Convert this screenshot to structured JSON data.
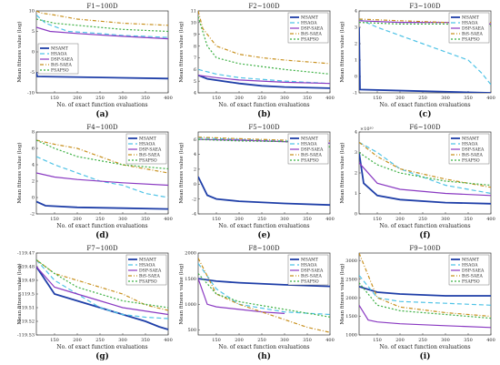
{
  "figure": {
    "xlabel": "No. of exact function evaluations",
    "ylabel": "Mean fitness value (log)",
    "legend": [
      "MSAMT",
      "HSAOA",
      "DSP-SAEA",
      "BiS-SAEA",
      "FSAPSO"
    ],
    "colors": {
      "MSAMT": "#1f3fa8",
      "HSAOA": "#4fc3e6",
      "DSP-SAEA": "#8a3ac2",
      "BiS-SAEA": "#c8901e",
      "FSAPSO": "#3cb043"
    }
  },
  "chart_data": [
    {
      "type": "line",
      "title": "F1~100D",
      "panel_label": "(a)",
      "xlabel": "No. of exact function evaluations",
      "ylabel": "Mean fitness value (log)",
      "xlim": [
        110,
        400
      ],
      "ylim": [
        -10,
        10
      ],
      "xticks": [
        150,
        200,
        250,
        300,
        350,
        400
      ],
      "yticks": [
        -10,
        -5,
        0,
        5,
        10
      ],
      "legend_position": "left",
      "series": [
        {
          "name": "MSAMT",
          "x": [
            110,
            112,
            400
          ],
          "y": [
            -5,
            -6,
            -6.5
          ]
        },
        {
          "name": "HSAOA",
          "x": [
            110,
            130,
            180,
            250,
            300,
            350,
            400
          ],
          "y": [
            9,
            7,
            5,
            4.5,
            4,
            3.8,
            3.5
          ]
        },
        {
          "name": "DSP-SAEA",
          "x": [
            110,
            140,
            200,
            300,
            400
          ],
          "y": [
            6,
            5,
            4.5,
            3.8,
            3.2
          ]
        },
        {
          "name": "BiS-SAEA",
          "x": [
            110,
            120,
            150,
            200,
            300,
            400
          ],
          "y": [
            10,
            9.5,
            9,
            8,
            7,
            6.5
          ]
        },
        {
          "name": "FSAPSO",
          "x": [
            110,
            150,
            200,
            300,
            400
          ],
          "y": [
            8,
            7,
            6.5,
            5.5,
            5
          ]
        }
      ]
    },
    {
      "type": "line",
      "title": "F2~100D",
      "panel_label": "(b)",
      "xlabel": "No. of exact function evaluations",
      "ylabel": "Mean fitness value (log)",
      "xlim": [
        110,
        400
      ],
      "ylim": [
        4,
        11
      ],
      "xticks": [
        150,
        200,
        250,
        300,
        350,
        400
      ],
      "yticks": [
        4,
        5,
        6,
        7,
        8,
        9,
        10,
        11
      ],
      "legend_position": "top-right",
      "series": [
        {
          "name": "MSAMT",
          "x": [
            110,
            130,
            200,
            250,
            300,
            400
          ],
          "y": [
            5.5,
            5.2,
            4.8,
            4.6,
            4.5,
            4.4
          ]
        },
        {
          "name": "HSAOA",
          "x": [
            110,
            150,
            200,
            300,
            400
          ],
          "y": [
            6,
            5.6,
            5.3,
            5,
            4.8
          ]
        },
        {
          "name": "DSP-SAEA",
          "x": [
            110,
            150,
            200,
            300,
            400
          ],
          "y": [
            5.5,
            5.3,
            5.1,
            4.9,
            4.8
          ]
        },
        {
          "name": "BiS-SAEA",
          "x": [
            110,
            120,
            150,
            200,
            250,
            300,
            400
          ],
          "y": [
            11,
            9.5,
            8,
            7.3,
            7,
            6.8,
            6.5
          ]
        },
        {
          "name": "FSAPSO",
          "x": [
            110,
            130,
            150,
            200,
            300,
            400
          ],
          "y": [
            10.5,
            8,
            7,
            6.5,
            6,
            5.6
          ]
        }
      ]
    },
    {
      "type": "line",
      "title": "F3~100D",
      "panel_label": "(c)",
      "xlabel": "No. of exact function evaluations",
      "ylabel": "Mean fitness value (log)",
      "xlim": [
        110,
        400
      ],
      "ylim": [
        -1,
        4
      ],
      "xticks": [
        150,
        200,
        250,
        300,
        350,
        400
      ],
      "yticks": [
        -1,
        0,
        1,
        2,
        3,
        4
      ],
      "legend_position": "top-right",
      "series": [
        {
          "name": "MSAMT",
          "x": [
            110,
            112,
            250,
            400
          ],
          "y": [
            3,
            -0.8,
            -0.9,
            -1
          ]
        },
        {
          "name": "HSAOA",
          "x": [
            110,
            150,
            200,
            250,
            300,
            350,
            380,
            400
          ],
          "y": [
            3.5,
            3,
            2.5,
            2,
            1.5,
            1,
            0.2,
            -0.5
          ]
        },
        {
          "name": "DSP-SAEA",
          "x": [
            110,
            200,
            300,
            400
          ],
          "y": [
            3.4,
            3.3,
            3.3,
            3.2
          ]
        },
        {
          "name": "BiS-SAEA",
          "x": [
            110,
            200,
            300,
            400
          ],
          "y": [
            3.5,
            3.4,
            3.3,
            3.3
          ]
        },
        {
          "name": "FSAPSO",
          "x": [
            110,
            200,
            300,
            400
          ],
          "y": [
            3.3,
            3.2,
            3.2,
            3.1
          ]
        }
      ]
    },
    {
      "type": "line",
      "title": "F4~100D",
      "panel_label": "(d)",
      "xlabel": "No. of exact function evaluations",
      "ylabel": "Mean fitness value (log)",
      "xlim": [
        110,
        400
      ],
      "ylim": [
        -2,
        8
      ],
      "xticks": [
        150,
        200,
        250,
        300,
        350,
        400
      ],
      "yticks": [
        -2,
        0,
        2,
        4,
        6,
        8
      ],
      "legend_position": "top-right",
      "series": [
        {
          "name": "MSAMT",
          "x": [
            110,
            130,
            200,
            300,
            400
          ],
          "y": [
            -0.5,
            -1,
            -1.2,
            -1.3,
            -1.4
          ]
        },
        {
          "name": "HSAOA",
          "x": [
            110,
            150,
            200,
            250,
            300,
            350,
            400
          ],
          "y": [
            5,
            4,
            3,
            2,
            1.5,
            0.5,
            0
          ]
        },
        {
          "name": "DSP-SAEA",
          "x": [
            110,
            150,
            200,
            300,
            400
          ],
          "y": [
            3,
            2.5,
            2.2,
            1.8,
            1.5
          ]
        },
        {
          "name": "BiS-SAEA",
          "x": [
            110,
            150,
            200,
            250,
            300,
            400
          ],
          "y": [
            7,
            6.5,
            6,
            5,
            4,
            3
          ]
        },
        {
          "name": "FSAPSO",
          "x": [
            110,
            150,
            200,
            300,
            400
          ],
          "y": [
            7,
            6,
            5,
            4,
            3.5
          ]
        }
      ]
    },
    {
      "type": "line",
      "title": "F5~100D",
      "panel_label": "(e)",
      "xlabel": "No. of exact function evaluations",
      "ylabel": "Mean fitness value (log)",
      "xlim": [
        110,
        400
      ],
      "ylim": [
        -4,
        7
      ],
      "xticks": [
        150,
        200,
        250,
        300,
        350,
        400
      ],
      "yticks": [
        -4,
        -2,
        0,
        2,
        4,
        6
      ],
      "legend_position": "top-right",
      "series": [
        {
          "name": "MSAMT",
          "x": [
            110,
            130,
            150,
            200,
            300,
            400
          ],
          "y": [
            1,
            -1.5,
            -2,
            -2.3,
            -2.6,
            -2.8
          ]
        },
        {
          "name": "HSAOA",
          "x": [
            110,
            200,
            300,
            400
          ],
          "y": [
            6.2,
            6,
            5.8,
            5.5
          ]
        },
        {
          "name": "DSP-SAEA",
          "x": [
            110,
            200,
            300,
            400
          ],
          "y": [
            6,
            5.9,
            5.7,
            5.5
          ]
        },
        {
          "name": "BiS-SAEA",
          "x": [
            110,
            200,
            300,
            400
          ],
          "y": [
            6.3,
            6.1,
            5.9,
            5.8
          ]
        },
        {
          "name": "FSAPSO",
          "x": [
            110,
            200,
            300,
            400
          ],
          "y": [
            6,
            5.8,
            5.7,
            5
          ]
        }
      ]
    },
    {
      "type": "line",
      "title": "F6~100D",
      "panel_label": "(f)",
      "y_multiplier": "×10¹⁰",
      "xlabel": "No. of exact function evaluations",
      "ylabel": "Mean fitness value (log)",
      "xlim": [
        110,
        400
      ],
      "ylim": [
        0,
        4
      ],
      "xticks": [
        150,
        200,
        250,
        300,
        350,
        400
      ],
      "yticks": [
        0,
        1,
        2,
        3,
        4
      ],
      "legend_position": "top-right",
      "series": [
        {
          "name": "MSAMT",
          "x": [
            110,
            120,
            150,
            200,
            300,
            400
          ],
          "y": [
            3,
            1.5,
            0.9,
            0.7,
            0.55,
            0.5
          ]
        },
        {
          "name": "HSAOA",
          "x": [
            110,
            150,
            200,
            250,
            300,
            350,
            400
          ],
          "y": [
            3.5,
            3,
            2.2,
            1.8,
            1.4,
            1.2,
            1
          ]
        },
        {
          "name": "DSP-SAEA",
          "x": [
            110,
            150,
            200,
            300,
            400
          ],
          "y": [
            2.5,
            1.5,
            1.2,
            1,
            0.9
          ]
        },
        {
          "name": "BiS-SAEA",
          "x": [
            110,
            150,
            200,
            300,
            400
          ],
          "y": [
            3.5,
            2.8,
            2.2,
            1.7,
            1.3
          ]
        },
        {
          "name": "FSAPSO",
          "x": [
            110,
            150,
            200,
            300,
            400
          ],
          "y": [
            3,
            2.4,
            2,
            1.6,
            1.4
          ]
        }
      ]
    },
    {
      "type": "line",
      "title": "F7~100D",
      "panel_label": "(g)",
      "xlabel": "No. of exact function evaluations",
      "ylabel": "Mean fitness value (log)",
      "xlim": [
        110,
        400
      ],
      "ylim": [
        -119.53,
        -119.47
      ],
      "xticks": [
        150,
        200,
        250,
        300,
        350,
        400
      ],
      "yticks": [
        -119.47,
        -119.48,
        -119.49,
        -119.5,
        -119.51,
        -119.52,
        -119.53
      ],
      "legend_position": "top-right",
      "series": [
        {
          "name": "MSAMT",
          "x": [
            110,
            150,
            200,
            250,
            300,
            350,
            380,
            400
          ],
          "y": [
            -119.48,
            -119.5,
            -119.505,
            -119.51,
            -119.515,
            -119.52,
            -119.524,
            -119.526
          ]
        },
        {
          "name": "HSAOA",
          "x": [
            110,
            150,
            200,
            250,
            300,
            350,
            400
          ],
          "y": [
            -119.475,
            -119.49,
            -119.5,
            -119.51,
            -119.515,
            -119.517,
            -119.518
          ]
        },
        {
          "name": "DSP-SAEA",
          "x": [
            110,
            150,
            200,
            250,
            300,
            400
          ],
          "y": [
            -119.48,
            -119.495,
            -119.5,
            -119.505,
            -119.51,
            -119.515
          ]
        },
        {
          "name": "BiS-SAEA",
          "x": [
            110,
            150,
            200,
            250,
            300,
            350,
            400
          ],
          "y": [
            -119.475,
            -119.485,
            -119.49,
            -119.495,
            -119.5,
            -119.508,
            -119.512
          ]
        },
        {
          "name": "FSAPSO",
          "x": [
            110,
            150,
            200,
            300,
            400
          ],
          "y": [
            -119.475,
            -119.485,
            -119.495,
            -119.505,
            -119.51
          ]
        }
      ]
    },
    {
      "type": "line",
      "title": "F8~100D",
      "panel_label": "(h)",
      "xlabel": "No. of exact function evaluations",
      "ylabel": "Mean fitness value (log)",
      "xlim": [
        110,
        400
      ],
      "ylim": [
        400,
        2000
      ],
      "xticks": [
        150,
        200,
        250,
        300,
        350,
        400
      ],
      "yticks": [
        500,
        1000,
        1500,
        2000
      ],
      "legend_position": "top-right",
      "series": [
        {
          "name": "MSAMT",
          "x": [
            110,
            150,
            200,
            300,
            400
          ],
          "y": [
            1500,
            1450,
            1420,
            1380,
            1350
          ]
        },
        {
          "name": "HSAOA",
          "x": [
            110,
            150,
            200,
            300,
            400
          ],
          "y": [
            1800,
            1300,
            1000,
            850,
            800
          ]
        },
        {
          "name": "DSP-SAEA",
          "x": [
            110,
            130,
            150,
            200,
            250,
            300
          ],
          "y": [
            1500,
            1000,
            950,
            900,
            850,
            820
          ]
        },
        {
          "name": "BiS-SAEA",
          "x": [
            110,
            150,
            200,
            250,
            300,
            350,
            400
          ],
          "y": [
            1900,
            1200,
            1000,
            850,
            700,
            550,
            450
          ]
        },
        {
          "name": "FSAPSO",
          "x": [
            110,
            150,
            200,
            300,
            400
          ],
          "y": [
            1600,
            1200,
            1050,
            900,
            750
          ]
        }
      ]
    },
    {
      "type": "line",
      "title": "F9~100D",
      "panel_label": "(i)",
      "xlabel": "No. of exact function evaluations",
      "ylabel": "Mean fitness value (log)",
      "xlim": [
        110,
        400
      ],
      "ylim": [
        1000,
        3200
      ],
      "xticks": [
        150,
        200,
        250,
        300,
        350,
        400
      ],
      "yticks": [
        1000,
        1500,
        2000,
        2500,
        3000
      ],
      "legend_position": "top-right",
      "series": [
        {
          "name": "MSAMT",
          "x": [
            110,
            150,
            200,
            300,
            400
          ],
          "y": [
            2300,
            2150,
            2100,
            2050,
            2050
          ]
        },
        {
          "name": "HSAOA",
          "x": [
            110,
            150,
            200,
            300,
            400
          ],
          "y": [
            2600,
            2000,
            1900,
            1850,
            1800
          ]
        },
        {
          "name": "DSP-SAEA",
          "x": [
            110,
            130,
            150,
            200,
            300,
            400
          ],
          "y": [
            1800,
            1400,
            1350,
            1300,
            1250,
            1200
          ]
        },
        {
          "name": "BiS-SAEA",
          "x": [
            110,
            150,
            200,
            300,
            400
          ],
          "y": [
            3200,
            2000,
            1750,
            1600,
            1500
          ]
        },
        {
          "name": "FSAPSO",
          "x": [
            110,
            150,
            200,
            300,
            400
          ],
          "y": [
            2400,
            1800,
            1650,
            1550,
            1450
          ]
        }
      ]
    }
  ]
}
